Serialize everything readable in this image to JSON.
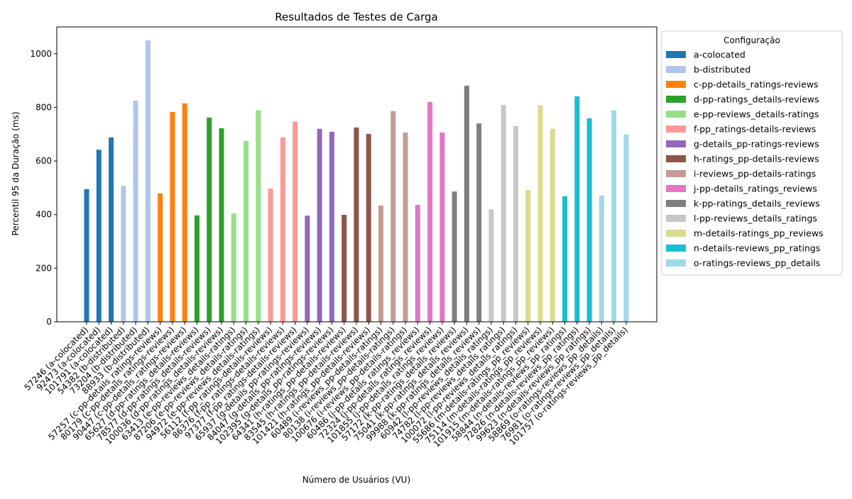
{
  "chart_data": {
    "type": "bar",
    "title": "Resultados de Testes de Carga",
    "xlabel": "Número de Usuários (VU)",
    "ylabel": "Percentil 95 da Duração (ms)",
    "ylim": [
      0,
      1100
    ],
    "yticks": [
      0,
      200,
      400,
      600,
      800,
      1000
    ],
    "grid": false,
    "legend": {
      "title": "Configuração",
      "placement": "outside-right"
    },
    "series": [
      {
        "name": "a-colocated",
        "color": "#1f77b4",
        "labels": [
          "57246 (a-colocated)",
          "92473 (a-colocated)",
          "101791 (a-colocated)"
        ],
        "values": [
          495,
          642,
          688
        ]
      },
      {
        "name": "b-distributed",
        "color": "#aec7e8",
        "labels": [
          "54382 (b-distributed)",
          "73204 (b-distributed)",
          "88933 (b-distributed)"
        ],
        "values": [
          507,
          825,
          1050
        ]
      },
      {
        "name": "c-pp-details_ratings-reviews",
        "color": "#ff7f0e",
        "labels": [
          "57257 (c-pp-details_ratings-reviews)",
          "80179 (c-pp-details_ratings-reviews)",
          "90447 (c-pp-details_ratings-reviews)"
        ],
        "values": [
          479,
          783,
          815
        ]
      },
      {
        "name": "d-pp-ratings_details-reviews",
        "color": "#2ca02c",
        "labels": [
          "65627 (d-pp-ratings_details-reviews)",
          "78577 (d-pp-ratings_details-reviews)",
          "100036 (d-pp-ratings_details-reviews)"
        ],
        "values": [
          397,
          762,
          722
        ]
      },
      {
        "name": "e-pp-reviews_details-ratings",
        "color": "#98df8a",
        "labels": [
          "63413 (e-pp-reviews_details-ratings)",
          "87206 (e-pp-reviews_details-ratings)",
          "94972 (e-pp-reviews_details-ratings)"
        ],
        "values": [
          404,
          675,
          789
        ]
      },
      {
        "name": "f-pp_ratings-details-reviews",
        "color": "#ff9896",
        "labels": [
          "56112 (f-pp_ratings-details-reviews)",
          "86376 (f-pp_ratings-details-reviews)",
          "97377 (f-pp_ratings-details-reviews)"
        ],
        "values": [
          497,
          688,
          747
        ]
      },
      {
        "name": "g-details_pp-ratings-reviews",
        "color": "#9467bd",
        "labels": [
          "65937 (g-details_pp-ratings-reviews)",
          "84047 (g-details_pp-ratings-reviews)",
          "102395 (g-details_pp-ratings-reviews)"
        ],
        "values": [
          396,
          720,
          709
        ]
      },
      {
        "name": "h-ratings_pp-details-reviews",
        "color": "#8c564b",
        "labels": [
          "64341 (h-ratings_pp-details-reviews)",
          "83545 (h-ratings_pp-details-reviews)",
          "101421 (h-ratings_pp-details-reviews)"
        ],
        "values": [
          399,
          725,
          701
        ]
      },
      {
        "name": "i-reviews_pp-details-ratings",
        "color": "#c49c94",
        "labels": [
          "60489 (i-reviews_pp-details-ratings)",
          "80138 (i-reviews_pp-details-ratings)",
          "100676 (i-reviews_pp-details-ratings)"
        ],
        "values": [
          434,
          786,
          706
        ]
      },
      {
        "name": "j-pp-details_ratings_reviews",
        "color": "#e377c2",
        "labels": [
          "60486 (j-pp-details_ratings_reviews)",
          "72324 (j-pp-details_ratings_reviews)",
          "101855 (j-pp-details_ratings_reviews)"
        ],
        "values": [
          436,
          820,
          706
        ]
      },
      {
        "name": "k-pp-ratings_details_reviews",
        "color": "#7f7f7f",
        "labels": [
          "57172 (k-pp-ratings_details_reviews)",
          "75041 (k-pp-ratings_details_reviews)",
          "99988 (k-pp-ratings_details_reviews)"
        ],
        "values": [
          486,
          881,
          740
        ]
      },
      {
        "name": "l-pp-reviews_details_ratings",
        "color": "#c7c7c7",
        "labels": [
          "60942 (l-pp-reviews_details_ratings)",
          "74782 (l-pp-reviews_details_ratings)",
          "100072 (l-pp-reviews_details_ratings)"
        ],
        "values": [
          419,
          809,
          730
        ]
      },
      {
        "name": "m-details-ratings_pp_reviews",
        "color": "#dbdb8d",
        "labels": [
          "55686 (m-details-ratings_pp_reviews)",
          "75114 (m-details-ratings_pp_reviews)",
          "101915 (m-details-ratings_pp_reviews)"
        ],
        "values": [
          492,
          807,
          720
        ]
      },
      {
        "name": "n-details-reviews_pp_ratings",
        "color": "#17becf",
        "labels": [
          "58844 (n-details-reviews_pp_ratings)",
          "72826 (n-details-reviews_pp_ratings)",
          "99623 (n-details-reviews_pp_ratings)"
        ],
        "values": [
          468,
          841,
          759
        ]
      },
      {
        "name": "o-ratings-reviews_pp_details",
        "color": "#9edae5",
        "labels": [
          "58869 (o-ratings-reviews_pp_details)",
          "76981 (o-ratings-reviews_pp_details)",
          "101757 (o-ratings-reviews_pp_details)"
        ],
        "values": [
          471,
          789,
          699
        ]
      }
    ]
  }
}
